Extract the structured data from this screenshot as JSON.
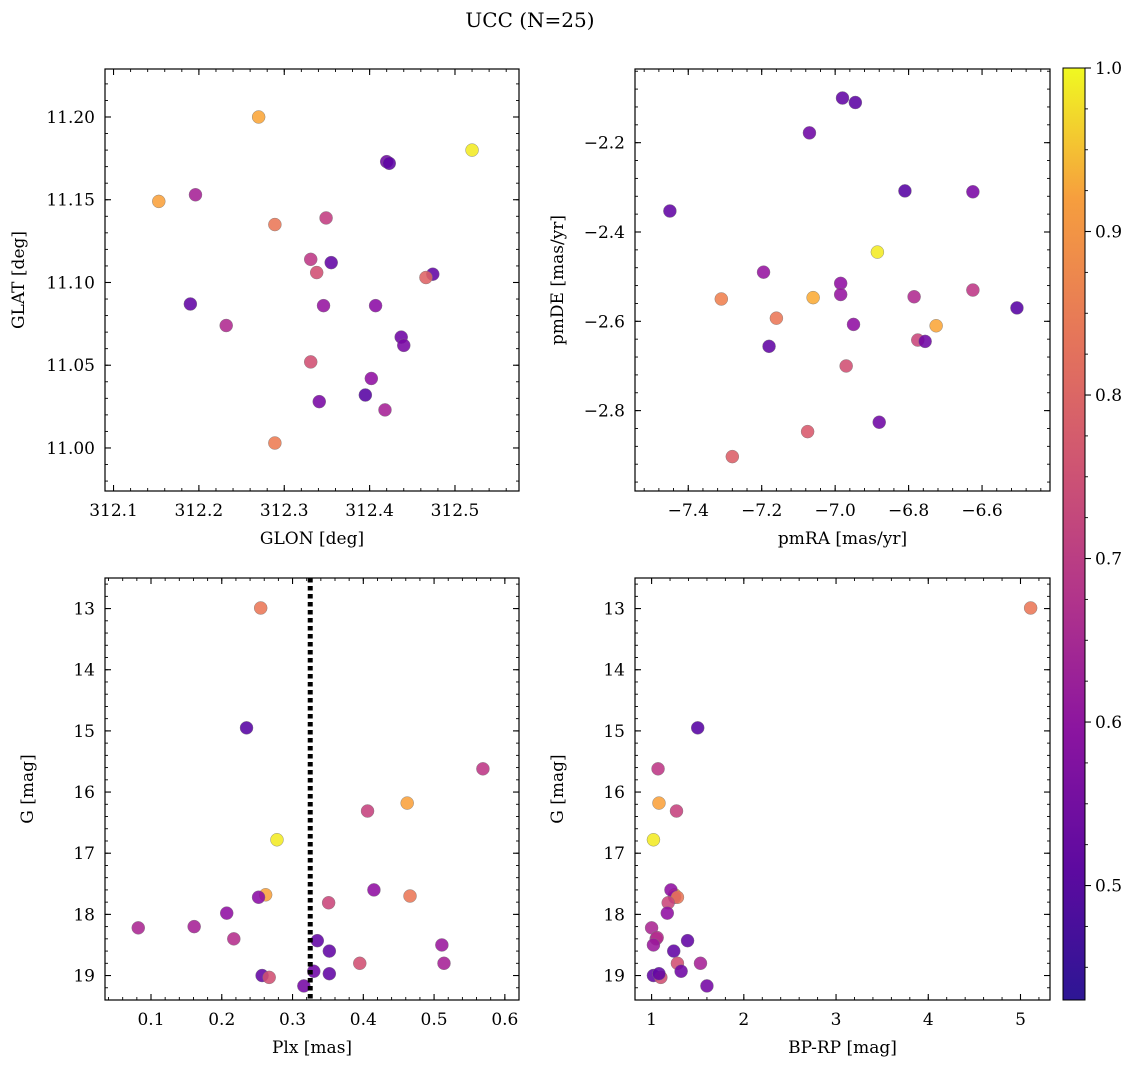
{
  "figure": {
    "title": "UCC (N=25)"
  },
  "colorbar": {
    "range": [
      0.43,
      1.0
    ],
    "ticks": [
      0.5,
      0.6,
      0.7,
      0.8,
      0.9,
      1.0
    ],
    "tick_labels": [
      "0.5",
      "0.6",
      "0.7",
      "0.8",
      "0.9",
      "1.0"
    ],
    "colormap": "plasma"
  },
  "chart_data": [
    {
      "type": "scatter",
      "id": "sky",
      "xlabel": "GLON [deg]",
      "ylabel": "GLAT [deg]",
      "xlim": [
        312.09,
        312.575
      ],
      "ylim": [
        10.974,
        11.229
      ],
      "invert_y": false,
      "xticks": [
        312.1,
        312.2,
        312.3,
        312.4,
        312.5
      ],
      "xtick_labels": [
        "312.1",
        "312.2",
        "312.3",
        "312.4",
        "312.5"
      ],
      "yticks": [
        11.0,
        11.05,
        11.1,
        11.15,
        11.2
      ],
      "ytick_labels": [
        "11.00",
        "11.05",
        "11.10",
        "11.15",
        "11.20"
      ],
      "x": [
        312.27,
        312.153,
        312.196,
        312.289,
        312.349,
        312.331,
        312.355,
        312.338,
        312.474,
        312.466,
        312.19,
        312.232,
        312.346,
        312.407,
        312.437,
        312.44,
        312.331,
        312.402,
        312.395,
        312.341,
        312.418,
        312.289,
        312.52,
        312.42,
        312.423
      ],
      "y": [
        11.2,
        11.149,
        11.153,
        11.135,
        11.139,
        11.114,
        11.112,
        11.106,
        11.105,
        11.103,
        11.087,
        11.074,
        11.086,
        11.086,
        11.067,
        11.062,
        11.052,
        11.042,
        11.032,
        11.028,
        11.023,
        11.003,
        11.18,
        11.173,
        11.172
      ],
      "c": [
        0.87,
        0.86,
        0.6,
        0.78,
        0.66,
        0.65,
        0.48,
        0.7,
        0.48,
        0.74,
        0.48,
        0.62,
        0.57,
        0.55,
        0.5,
        0.52,
        0.7,
        0.56,
        0.46,
        0.52,
        0.6,
        0.79,
        0.98,
        0.5,
        0.47
      ]
    },
    {
      "type": "scatter",
      "id": "pm",
      "xlabel": "pmRA [mas/yr]",
      "ylabel": "pmDE [mas/yr]",
      "xlim": [
        -7.545,
        -6.415
      ],
      "ylim": [
        -2.98,
        -2.035
      ],
      "invert_y": false,
      "xticks": [
        -7.4,
        -7.2,
        -7.0,
        -6.8,
        -6.6
      ],
      "xtick_labels": [
        "−7.4",
        "−7.2",
        "−7.0",
        "−6.8",
        "−6.6"
      ],
      "yticks": [
        -2.8,
        -2.6,
        -2.4,
        -2.2
      ],
      "ytick_labels": [
        "−2.8",
        "−2.6",
        "−2.4",
        "−2.2"
      ],
      "x": [
        -6.98,
        -6.945,
        -7.07,
        -7.45,
        -6.81,
        -6.625,
        -6.885,
        -7.195,
        -6.985,
        -6.625,
        -6.785,
        -7.31,
        -7.06,
        -6.985,
        -6.505,
        -7.16,
        -6.725,
        -6.95,
        -7.18,
        -6.775,
        -6.755,
        -6.97,
        -6.88,
        -7.075,
        -7.28
      ],
      "y": [
        -2.1,
        -2.11,
        -2.178,
        -2.353,
        -2.308,
        -2.31,
        -2.445,
        -2.49,
        -2.515,
        -2.53,
        -2.545,
        -2.55,
        -2.547,
        -2.54,
        -2.57,
        -2.593,
        -2.61,
        -2.607,
        -2.656,
        -2.642,
        -2.645,
        -2.7,
        -2.826,
        -2.847,
        -2.903
      ],
      "c": [
        0.48,
        0.47,
        0.5,
        0.48,
        0.46,
        0.52,
        0.98,
        0.57,
        0.56,
        0.65,
        0.62,
        0.8,
        0.88,
        0.57,
        0.46,
        0.78,
        0.87,
        0.56,
        0.48,
        0.68,
        0.5,
        0.7,
        0.5,
        0.72,
        0.73
      ]
    },
    {
      "type": "scatter",
      "id": "cmd-plx",
      "xlabel": "Plx [mas]",
      "ylabel": "G [mag]",
      "xlim": [
        0.035,
        0.62
      ],
      "ylim": [
        12.5,
        19.4
      ],
      "invert_y": true,
      "vline": 0.325,
      "xticks": [
        0.1,
        0.2,
        0.3,
        0.4,
        0.5,
        0.6
      ],
      "xtick_labels": [
        "0.1",
        "0.2",
        "0.3",
        "0.4",
        "0.5",
        "0.6"
      ],
      "yticks": [
        13,
        14,
        15,
        16,
        17,
        18,
        19
      ],
      "ytick_labels": [
        "13",
        "14",
        "15",
        "16",
        "17",
        "18",
        "19"
      ],
      "x": [
        0.255,
        0.235,
        0.569,
        0.462,
        0.406,
        0.278,
        0.262,
        0.252,
        0.415,
        0.466,
        0.351,
        0.207,
        0.082,
        0.161,
        0.217,
        0.335,
        0.511,
        0.352,
        0.395,
        0.514,
        0.257,
        0.267,
        0.33,
        0.352,
        0.316
      ],
      "y": [
        12.99,
        14.95,
        15.62,
        16.18,
        16.31,
        16.78,
        17.68,
        17.72,
        17.6,
        17.7,
        17.81,
        17.98,
        18.22,
        18.2,
        18.4,
        18.43,
        18.5,
        18.6,
        18.8,
        18.8,
        19.0,
        19.03,
        18.93,
        18.97,
        19.17
      ],
      "c": [
        0.78,
        0.46,
        0.65,
        0.86,
        0.67,
        0.98,
        0.86,
        0.55,
        0.56,
        0.78,
        0.68,
        0.56,
        0.61,
        0.6,
        0.63,
        0.48,
        0.58,
        0.48,
        0.7,
        0.6,
        0.48,
        0.7,
        0.5,
        0.48,
        0.51
      ]
    },
    {
      "type": "scatter",
      "id": "cmd-color",
      "xlabel": "BP-RP [mag]",
      "ylabel": "G [mag]",
      "xlim": [
        0.82,
        5.32
      ],
      "ylim": [
        12.5,
        19.4
      ],
      "invert_y": true,
      "xticks": [
        1,
        2,
        3,
        4,
        5
      ],
      "xtick_labels": [
        "1",
        "2",
        "3",
        "4",
        "5"
      ],
      "yticks": [
        13,
        14,
        15,
        16,
        17,
        18,
        19
      ],
      "ytick_labels": [
        "13",
        "14",
        "15",
        "16",
        "17",
        "18",
        "19"
      ],
      "x": [
        5.11,
        1.5,
        1.07,
        1.08,
        1.27,
        1.02,
        1.25,
        1.25,
        1.21,
        1.28,
        1.18,
        1.17,
        1.0,
        1.05,
        1.06,
        1.39,
        1.02,
        1.24,
        1.28,
        1.53,
        1.02,
        1.1,
        1.32,
        1.08,
        1.6
      ],
      "y": [
        12.99,
        14.95,
        15.62,
        16.18,
        16.31,
        16.78,
        17.68,
        17.72,
        17.6,
        17.72,
        17.81,
        17.98,
        18.22,
        18.4,
        18.38,
        18.43,
        18.5,
        18.6,
        18.8,
        18.8,
        19.0,
        19.03,
        18.93,
        18.97,
        19.17
      ],
      "c": [
        0.78,
        0.46,
        0.65,
        0.86,
        0.67,
        0.98,
        0.86,
        0.55,
        0.56,
        0.78,
        0.68,
        0.56,
        0.61,
        0.6,
        0.63,
        0.48,
        0.58,
        0.48,
        0.7,
        0.6,
        0.48,
        0.7,
        0.5,
        0.48,
        0.51
      ]
    }
  ]
}
